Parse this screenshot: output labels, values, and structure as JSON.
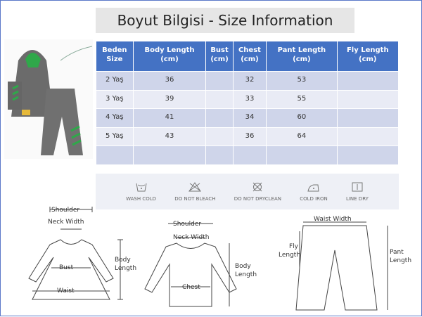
{
  "title": "Boyut Bilgisi - Size Information",
  "table": {
    "headers": [
      [
        "Beden",
        "Size"
      ],
      [
        "Body Length",
        "(cm)"
      ],
      [
        "Bust",
        "(cm)"
      ],
      [
        "Chest",
        "(cm)"
      ],
      [
        "Pant Length",
        "(cm)"
      ],
      [
        "Fly Length",
        "(cm)"
      ]
    ],
    "rows": [
      [
        "2 Yaş",
        "36",
        "",
        "32",
        "53",
        ""
      ],
      [
        "3 Yaş",
        "39",
        "",
        "33",
        "55",
        ""
      ],
      [
        "4 Yaş",
        "41",
        "",
        "34",
        "60",
        ""
      ],
      [
        "5 Yaş",
        "43",
        "",
        "36",
        "64",
        ""
      ],
      [
        "",
        "",
        "",
        "",
        "",
        ""
      ]
    ]
  },
  "care": [
    {
      "icon": "wash-cold-icon",
      "label": "WASH COLD"
    },
    {
      "icon": "do-not-bleach-icon",
      "label": "DO NOT BLEACH"
    },
    {
      "icon": "do-not-dryclean-icon",
      "label": "DO NOT DRYCLEAN"
    },
    {
      "icon": "cold-iron-icon",
      "label": "COLD IRON"
    },
    {
      "icon": "line-dry-icon",
      "label": "LINE DRY"
    }
  ],
  "diagrams": {
    "dress": {
      "shoulder": "Shoulder",
      "neck": "Neck Width",
      "bust": "Bust",
      "waist": "Waist",
      "body": [
        "Body",
        "Length"
      ]
    },
    "shirt": {
      "shoulder": "Shoulder",
      "neck": "Neck Width",
      "chest": "Chest",
      "body": [
        "Body",
        "Length"
      ]
    },
    "pants": {
      "waist": "Waist Width",
      "fly": [
        "Fly",
        "Length"
      ],
      "pant": [
        "Pant",
        "Length"
      ]
    }
  },
  "colors": {
    "header": "#4472c4",
    "row_odd": "#cfd5ea",
    "row_even": "#e9ebf5"
  }
}
